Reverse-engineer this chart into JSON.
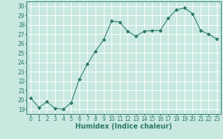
{
  "x": [
    0,
    1,
    2,
    3,
    4,
    5,
    6,
    7,
    8,
    9,
    10,
    11,
    12,
    13,
    14,
    15,
    16,
    17,
    18,
    19,
    20,
    21,
    22,
    23
  ],
  "y": [
    20.2,
    19.2,
    19.8,
    19.1,
    19.0,
    19.7,
    22.2,
    23.8,
    25.2,
    26.4,
    28.4,
    28.3,
    27.3,
    26.8,
    27.3,
    27.4,
    27.4,
    28.7,
    29.6,
    29.8,
    29.2,
    27.4,
    27.0,
    26.5
  ],
  "line_color": "#2d7a6b",
  "marker": "D",
  "marker_size": 2.0,
  "bg_color": "#c8e8e0",
  "grid_color": "#ffffff",
  "xlabel": "Humidex (Indice chaleur)",
  "xlim": [
    -0.5,
    23.5
  ],
  "ylim": [
    18.5,
    30.5
  ],
  "yticks": [
    19,
    20,
    21,
    22,
    23,
    24,
    25,
    26,
    27,
    28,
    29,
    30
  ],
  "xticks": [
    0,
    1,
    2,
    3,
    4,
    5,
    6,
    7,
    8,
    9,
    10,
    11,
    12,
    13,
    14,
    15,
    16,
    17,
    18,
    19,
    20,
    21,
    22,
    23
  ],
  "xlabel_fontsize": 7,
  "tick_fontsize": 5.5,
  "line_width": 0.8
}
